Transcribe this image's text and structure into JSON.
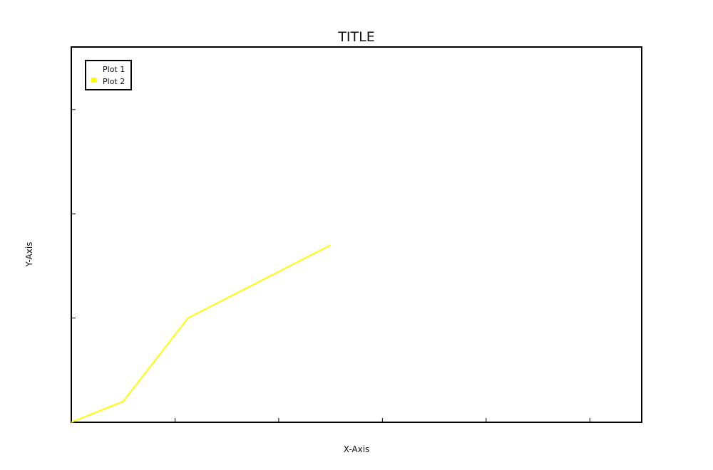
{
  "chart_data": {
    "type": "line",
    "title": "TITLE",
    "xlabel": "X-Axis",
    "ylabel": "Y-Axis",
    "xlim": [
      0,
      11
    ],
    "ylim": [
      0,
      9
    ],
    "x_ticks": [
      0,
      2,
      4,
      6,
      8,
      10
    ],
    "y_ticks": [
      0,
      2.5,
      5,
      7.5
    ],
    "grid": false,
    "legend": {
      "placement": "top-left",
      "entries": [
        "Plot 1",
        "Plot 2"
      ]
    },
    "series": [
      {
        "name": "Plot 1",
        "color": "#ffffff",
        "x": [],
        "y": []
      },
      {
        "name": "Plot 2",
        "color": "#ffff00",
        "x": [
          0,
          1,
          2.25,
          5
        ],
        "y": [
          0,
          0.5,
          2.5,
          4.25
        ]
      }
    ]
  }
}
